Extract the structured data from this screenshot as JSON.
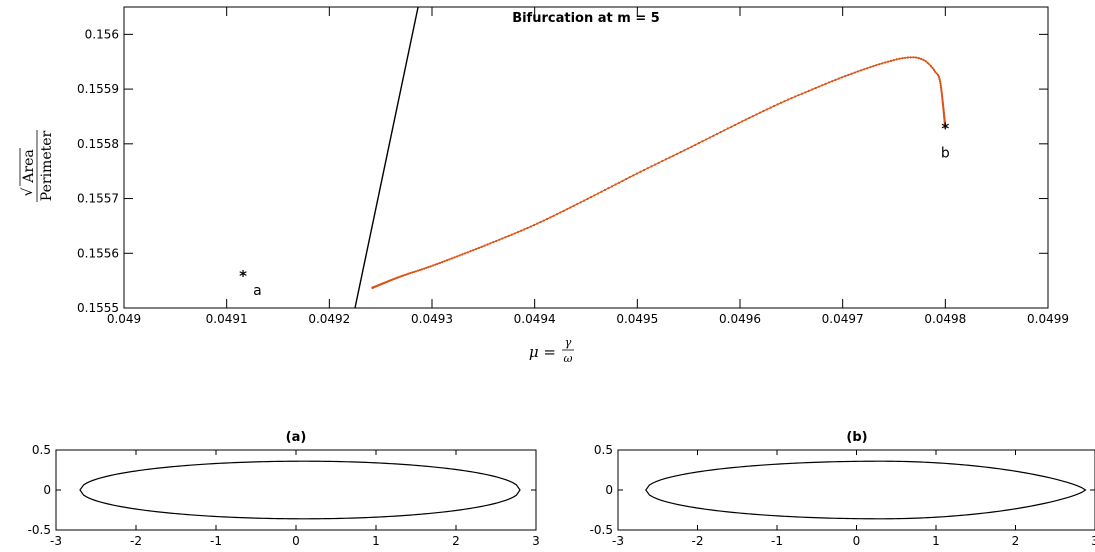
{
  "chart_data": [
    {
      "type": "line",
      "title": "Bifurcation at m = 5",
      "xlabel": "μ = γ/ω",
      "xlabel_parts": {
        "lhs": "μ =",
        "num": "γ",
        "den": "ω"
      },
      "ylabel": "√Area / Perimeter",
      "ylabel_parts": {
        "num": "Area",
        "den": "Perimeter"
      },
      "xlim": [
        0.049,
        0.0499
      ],
      "ylim": [
        0.1555,
        0.15605
      ],
      "xticks": [
        0.049,
        0.0491,
        0.0492,
        0.0493,
        0.0494,
        0.0495,
        0.0496,
        0.0497,
        0.0498,
        0.0499
      ],
      "xtick_labels": [
        "0.049",
        "0.0491",
        "0.0492",
        "0.0493",
        "0.0494",
        "0.0495",
        "0.0496",
        "0.0497",
        "0.0498",
        "0.0499"
      ],
      "yticks": [
        0.1555,
        0.1556,
        0.1557,
        0.1558,
        0.1559,
        0.156
      ],
      "ytick_labels": [
        "0.1555",
        "0.1556",
        "0.1557",
        "0.1558",
        "0.1559",
        "0.156"
      ],
      "grid": false,
      "series": [
        {
          "style": "black-line",
          "color": "#000000",
          "x": [
            0.049225,
            0.049287
          ],
          "y": [
            0.1555,
            0.156055
          ]
        },
        {
          "style": "orange-dotted-branch",
          "color": "#d95319",
          "x": [
            0.049242,
            0.04927,
            0.0493,
            0.04935,
            0.0494,
            0.04945,
            0.0495,
            0.04955,
            0.0496,
            0.04964,
            0.04967,
            0.0497,
            0.04973,
            0.04975,
            0.04976,
            0.04977,
            0.049775,
            0.04978,
            0.049785,
            0.04979,
            0.049795,
            0.0498
          ],
          "y": [
            0.155537,
            0.155558,
            0.155577,
            0.155613,
            0.155652,
            0.155698,
            0.155746,
            0.155792,
            0.155839,
            0.155875,
            0.155899,
            0.155922,
            0.155942,
            0.155953,
            0.155957,
            0.155958,
            0.155956,
            0.155952,
            0.155944,
            0.155932,
            0.155913,
            0.15583
          ]
        }
      ],
      "annotations": [
        {
          "label": "a",
          "x": 0.049116,
          "y": 0.15556
        },
        {
          "label": "b",
          "x": 0.0498,
          "y": 0.15583
        }
      ]
    },
    {
      "type": "line",
      "title": "(a)",
      "xlim": [
        -3,
        3
      ],
      "ylim": [
        -0.5,
        0.5
      ],
      "xticks": [
        -3,
        -2,
        -1,
        0,
        1,
        2,
        3
      ],
      "xtick_labels": [
        "-3",
        "-2",
        "-1",
        "0",
        "1",
        "2",
        "3"
      ],
      "yticks": [
        -0.5,
        0,
        0.5
      ],
      "ytick_labels": [
        "-0.5",
        "0",
        "0.5"
      ],
      "shape": {
        "x_left": -2.7,
        "x_right": 2.8,
        "x_peak": 0.1,
        "half_height": 0.36,
        "tip": "round"
      }
    },
    {
      "type": "line",
      "title": "(b)",
      "xlim": [
        -3,
        3
      ],
      "ylim": [
        -0.5,
        0.5
      ],
      "xticks": [
        -3,
        -2,
        -1,
        0,
        1,
        2,
        3
      ],
      "xtick_labels": [
        "-3",
        "-2",
        "-1",
        "0",
        "1",
        "2",
        "3"
      ],
      "yticks": [
        -0.5,
        0,
        0.5
      ],
      "ytick_labels": [
        "-0.5",
        "0",
        "0.5"
      ],
      "shape": {
        "x_left": -2.65,
        "x_right": 2.88,
        "x_peak": 0.3,
        "half_height": 0.36,
        "tip": "pointed"
      }
    }
  ]
}
